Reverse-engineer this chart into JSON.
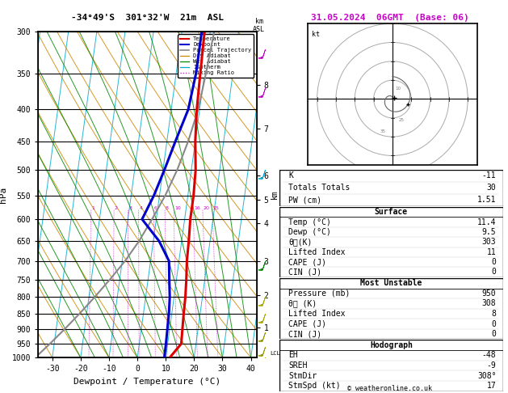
{
  "title_left": "-34°49'S  301°32'W  21m  ASL",
  "title_right": "31.05.2024  06GMT  (Base: 06)",
  "xlabel": "Dewpoint / Temperature (°C)",
  "ylabel_left": "hPa",
  "pressure_levels": [
    300,
    350,
    400,
    450,
    500,
    550,
    600,
    650,
    700,
    750,
    800,
    850,
    900,
    950,
    1000
  ],
  "temp_line_x": [
    8.0,
    8.5,
    9.0,
    10.0,
    11.5,
    12.0,
    12.0,
    12.5,
    12.8,
    13.5,
    14.0,
    14.2,
    14.5,
    14.8,
    11.4
  ],
  "dewp_line_x": [
    7.0,
    7.0,
    6.0,
    3.0,
    0.5,
    -2.0,
    -5.0,
    2.0,
    6.5,
    7.5,
    8.5,
    9.0,
    9.2,
    9.4,
    9.5
  ],
  "parcel_x": [
    11.4,
    10.5,
    9.5,
    7.5,
    5.0,
    2.0,
    -1.5,
    -5.0,
    -9.0,
    -13.5,
    -18.0,
    -22.5,
    -27.0,
    -31.5,
    -36.0
  ],
  "temp_pressures": [
    300,
    350,
    400,
    450,
    500,
    550,
    600,
    650,
    700,
    750,
    800,
    850,
    900,
    950,
    1000
  ],
  "bg_color": "#ffffff",
  "temp_color": "#dd0000",
  "dewp_color": "#0000cc",
  "parcel_color": "#888888",
  "dry_adiabat_color": "#cc8800",
  "wet_adiabat_color": "#008800",
  "isotherm_color": "#00aacc",
  "mixing_color": "#cc00cc",
  "mixing_ratios": [
    1,
    2,
    3,
    4,
    6,
    8,
    10,
    16,
    20,
    25
  ],
  "info_K": -11,
  "info_TT": 30,
  "info_PW": "1.51",
  "surf_temp": "11.4",
  "surf_dewp": "9.5",
  "surf_thetae": 303,
  "surf_li": 11,
  "surf_cape": 0,
  "surf_cin": 0,
  "mu_pres": 950,
  "mu_thetae": 308,
  "mu_li": 8,
  "mu_cape": 0,
  "mu_cin": 0,
  "hodo_EH": -48,
  "hodo_SREH": -9,
  "hodo_StmDir": "308°",
  "hodo_StmSpd": 17,
  "copyright": "© weatheronline.co.uk",
  "T_min": -35,
  "T_max": 42,
  "skew_factor": 30,
  "km_ticks": [
    1,
    2,
    3,
    4,
    5,
    6,
    7,
    8
  ],
  "km_pressures": [
    895,
    795,
    700,
    608,
    558,
    510,
    430,
    365
  ]
}
